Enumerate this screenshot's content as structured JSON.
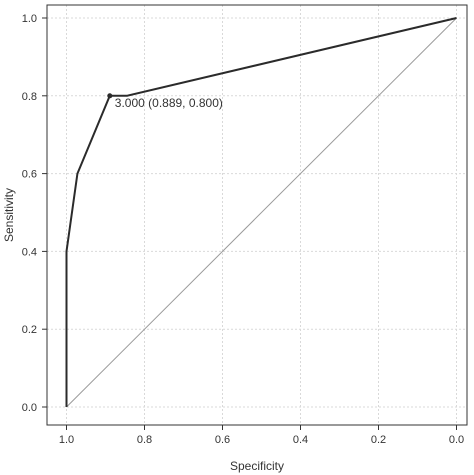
{
  "chart_data": {
    "type": "line",
    "xlabel": "Specificity",
    "ylabel": "Sensitivity",
    "x_reversed": true,
    "xlim": [
      1.0,
      0.0
    ],
    "ylim": [
      0.0,
      1.0
    ],
    "x_ticks": [
      "1.0",
      "0.8",
      "0.6",
      "0.4",
      "0.2",
      "0.0"
    ],
    "y_ticks": [
      "0.0",
      "0.2",
      "0.4",
      "0.6",
      "0.8",
      "1.0"
    ],
    "grid": true,
    "series": [
      {
        "x": [
          1.0,
          1.0,
          0.972,
          0.889,
          0.845,
          0.0
        ],
        "y": [
          0.0,
          0.4,
          0.6,
          0.8,
          0.8,
          1.0
        ],
        "color": "#2b2b2b"
      }
    ],
    "reference_line": {
      "x": [
        1.0,
        0.0
      ],
      "y": [
        0.0,
        1.0
      ],
      "color": "#9a9a9a"
    },
    "annotation": {
      "point": {
        "x": 0.889,
        "y": 0.8
      },
      "text": "3.000 (0.889, 0.800)"
    },
    "colors": {
      "grid": "#d9d9d9",
      "frame": "#333333"
    }
  }
}
